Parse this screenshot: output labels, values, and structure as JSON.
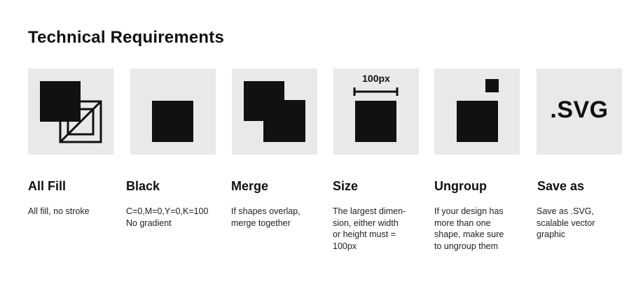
{
  "page": {
    "title": "Technical Requirements"
  },
  "colors": {
    "tile_background": "#e9e9e9",
    "shape": "#111111",
    "text": "#111111"
  },
  "requirements": [
    {
      "icon": "overlapping-squares-outline-icon",
      "heading": "All Fill",
      "lines": [
        "All fill, no stroke"
      ]
    },
    {
      "icon": "black-square-icon",
      "heading": "Black",
      "lines": [
        "C=0,M=0,Y=0,K=100",
        "No gradient"
      ]
    },
    {
      "icon": "merged-squares-icon",
      "heading": "Merge",
      "lines": [
        "If shapes overlap,",
        "merge together"
      ]
    },
    {
      "icon": "size-measure-icon",
      "icon_label": "100px",
      "heading": "Size",
      "lines": [
        "The largest dimen-",
        "sion, either width",
        "or height must =",
        "100px"
      ]
    },
    {
      "icon": "separated-squares-icon",
      "heading": "Ungroup",
      "lines": [
        "If your design has",
        "more than one",
        "shape, make sure",
        "to ungroup them"
      ]
    },
    {
      "icon": "svg-format-icon",
      "icon_label": ".SVG",
      "heading": "Save as",
      "lines": [
        "Save as .SVG,",
        "scalable vector",
        "graphic"
      ]
    }
  ]
}
